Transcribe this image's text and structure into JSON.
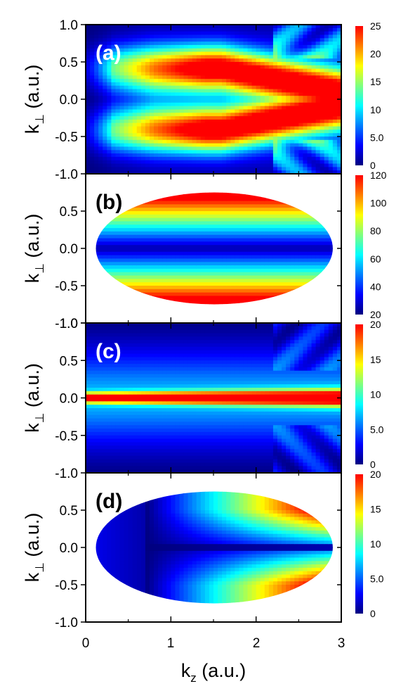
{
  "chart_data": [
    {
      "type": "heatmap",
      "panel_label": "(a)",
      "panel_label_color": "#ffffff",
      "xlim": [
        0,
        3
      ],
      "ylim": [
        -1.0,
        1.0
      ],
      "x_ticks": [
        "0",
        "1",
        "2",
        "3"
      ],
      "y_ticks": [
        "1.0",
        "0.5",
        "0.0",
        "-0.5",
        "-1.0"
      ],
      "ylabel": "k⊥ (a.u.)",
      "colorbar": {
        "range": [
          0,
          25
        ],
        "ticks": [
          0,
          5,
          10,
          15,
          20,
          25
        ],
        "tick_labels": [
          "0",
          "5.0",
          "10",
          "15",
          "20",
          "25"
        ]
      },
      "pattern": "two-lobe ridge at k⊥ ≈ ±0.35 merging toward kz ≈ 3, diagonal interference fringes near top-right/bottom-right",
      "kz_max": 3.0
    },
    {
      "type": "heatmap",
      "panel_label": "(b)",
      "panel_label_color": "#000000",
      "xlim": [
        0,
        3
      ],
      "ylim": [
        -1.0,
        1.0
      ],
      "x_ticks": [
        "0",
        "1",
        "2",
        "3"
      ],
      "y_ticks": [
        "0.5",
        "0.0",
        "-0.5",
        "-1.0"
      ],
      "ylabel": "k⊥ (a.u.)",
      "colorbar": {
        "range": [
          20,
          120
        ],
        "ticks": [
          20,
          40,
          60,
          80,
          100,
          120
        ],
        "tick_labels": [
          "20",
          "40",
          "60",
          "80",
          "100",
          "120"
        ]
      },
      "pattern": "elliptical region, minimum along k⊥ = 0, maximum near k⊥ ≈ ±0.65",
      "kz_max": 2.9
    },
    {
      "type": "heatmap",
      "panel_label": "(c)",
      "panel_label_color": "#ffffff",
      "xlim": [
        0,
        3
      ],
      "ylim": [
        -1.0,
        1.0
      ],
      "x_ticks": [
        "0",
        "1",
        "2",
        "3"
      ],
      "y_ticks": [
        "1.0",
        "0.5",
        "0.0",
        "-0.5",
        "-1.0"
      ],
      "ylabel": "k⊥ (a.u.)",
      "colorbar": {
        "range": [
          0,
          20
        ],
        "ticks": [
          0,
          5,
          10,
          15,
          20
        ],
        "tick_labels": [
          "0",
          "5.0",
          "10",
          "15",
          "20"
        ]
      },
      "pattern": "sharp maximum along k⊥ = 0, diagonal fringes near kz ≈ 2.5–3",
      "kz_max": 3.0
    },
    {
      "type": "heatmap",
      "panel_label": "(d)",
      "panel_label_color": "#000000",
      "xlim": [
        0,
        3
      ],
      "ylim": [
        -1.0,
        1.0
      ],
      "x_ticks": [
        "0",
        "1",
        "2",
        "3"
      ],
      "y_ticks": [
        "0.5",
        "0.0",
        "-0.5",
        "-1.0"
      ],
      "ylabel": "k⊥ (a.u.)",
      "xlabel": "kz (a.u.)",
      "colorbar": {
        "range": [
          0,
          20
        ],
        "ticks": [
          0,
          5,
          10,
          15,
          20
        ],
        "tick_labels": [
          "0",
          "5.0",
          "10",
          "15",
          "20"
        ]
      },
      "pattern": "elliptical region, low near kz ≈ 0.6, rising to maximum near kz ≈ 2.5 at k⊥ ≈ ±0.5",
      "kz_max": 2.9
    }
  ],
  "labels": {
    "ylabel_main": "k",
    "ylabel_sub": "⊥",
    "ylabel_unit": " (a.u.)",
    "xlabel_main": "k",
    "xlabel_sub": "z",
    "xlabel_unit": " (a.u.)"
  },
  "x_tick_labels": [
    "0",
    "1",
    "2",
    "3"
  ],
  "colormap": [
    "#00007f",
    "#0000ff",
    "#007fff",
    "#00ffff",
    "#7fff7f",
    "#ffff00",
    "#ff7f00",
    "#ff0000"
  ]
}
